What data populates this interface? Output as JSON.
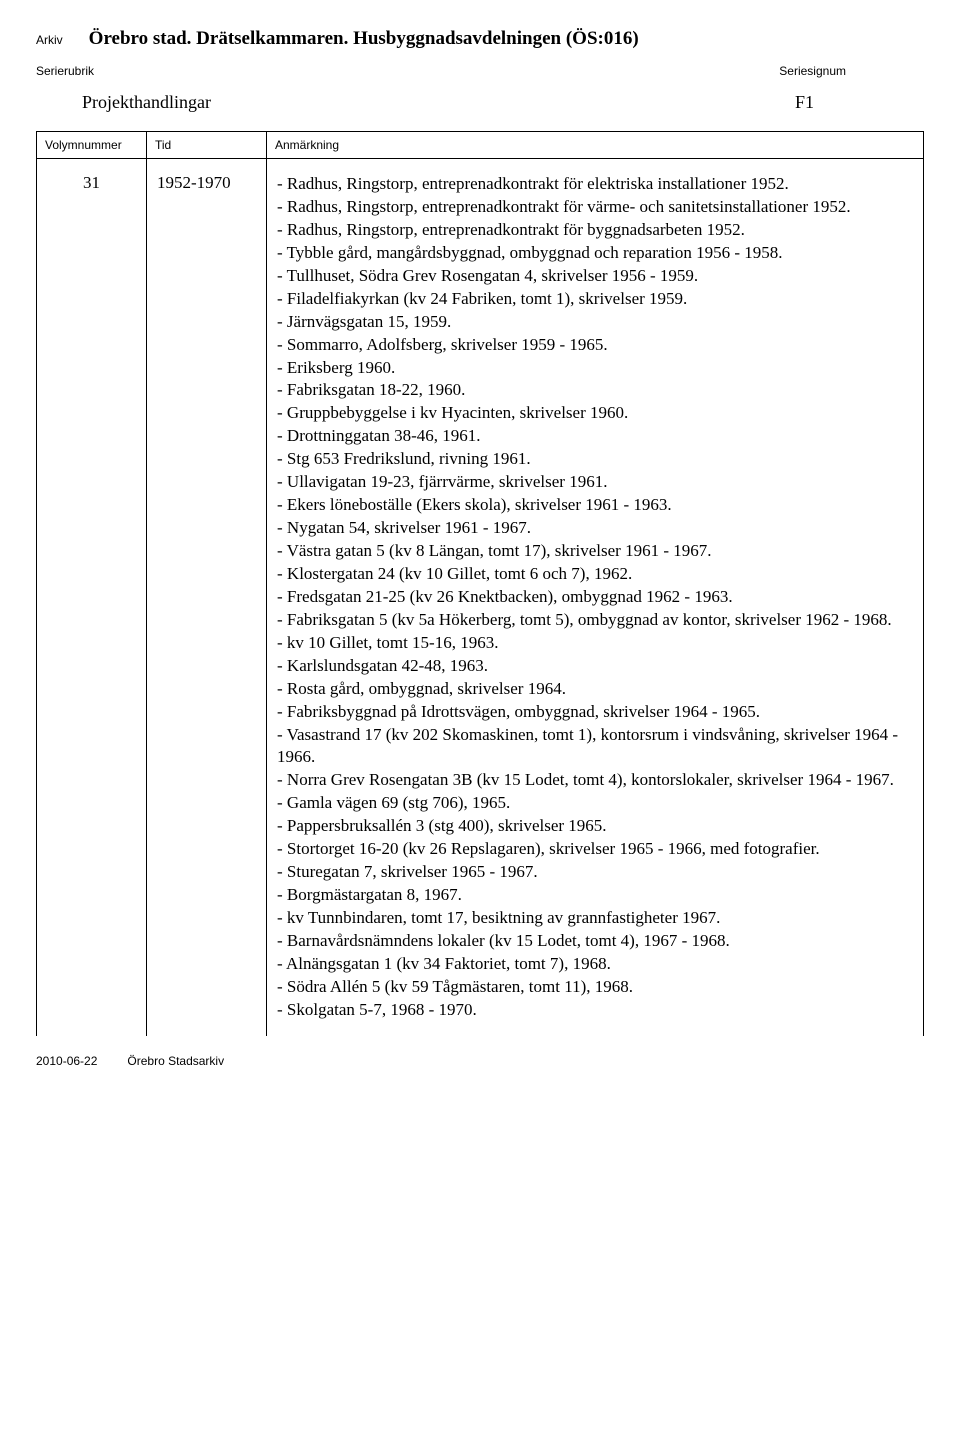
{
  "labels": {
    "arkiv": "Arkiv",
    "serierubrik": "Serierubrik",
    "seriesignum": "Seriesignum",
    "volymnummer": "Volymnummer",
    "tid": "Tid",
    "anmarkning": "Anmärkning"
  },
  "archive_title": "Örebro stad. Drätselkammaren. Husbyggnadsavdelningen (ÖS:016)",
  "series_name": "Projekthandlingar",
  "series_signum": "F1",
  "row": {
    "volym": "31",
    "tid": "1952-1970",
    "notes": [
      "- Radhus, Ringstorp, entreprenadkontrakt för elektriska installationer 1952.",
      "- Radhus, Ringstorp, entreprenadkontrakt för värme- och sanitetsinstallationer 1952.",
      "- Radhus, Ringstorp, entreprenadkontrakt för byggnadsarbeten 1952.",
      "- Tybble gård, mangårdsbyggnad, ombyggnad och reparation 1956 - 1958.",
      "- Tullhuset, Södra Grev Rosengatan 4, skrivelser 1956 - 1959.",
      "- Filadelfiakyrkan (kv 24 Fabriken, tomt 1), skrivelser 1959.",
      "- Järnvägsgatan 15, 1959.",
      "- Sommarro, Adolfsberg, skrivelser 1959 - 1965.",
      "- Eriksberg 1960.",
      "- Fabriksgatan 18-22, 1960.",
      "- Gruppbebyggelse i kv Hyacinten, skrivelser 1960.",
      "- Drottninggatan 38-46, 1961.",
      "- Stg 653 Fredrikslund, rivning 1961.",
      "- Ullavigatan 19-23, fjärrvärme, skrivelser 1961.",
      "- Ekers löneboställe (Ekers skola), skrivelser 1961 - 1963.",
      "- Nygatan 54, skrivelser 1961 - 1967.",
      "- Västra gatan 5 (kv 8 Längan, tomt 17), skrivelser 1961 - 1967.",
      "- Klostergatan 24 (kv 10 Gillet, tomt 6 och 7), 1962.",
      "- Fredsgatan 21-25 (kv 26 Knektbacken), ombyggnad 1962 - 1963.",
      "- Fabriksgatan 5 (kv 5a Hökerberg, tomt 5), ombyggnad av kontor, skrivelser 1962 - 1968.",
      "- kv 10 Gillet, tomt 15-16, 1963.",
      "- Karlslundsgatan 42-48, 1963.",
      "- Rosta gård, ombyggnad, skrivelser 1964.",
      "- Fabriksbyggnad på Idrottsvägen, ombyggnad, skrivelser 1964 - 1965.",
      "- Vasastrand 17 (kv 202 Skomaskinen, tomt 1), kontorsrum i vindsvåning, skrivelser 1964 - 1966.",
      "- Norra Grev Rosengatan 3B (kv 15 Lodet, tomt 4), kontorslokaler, skrivelser 1964 - 1967.",
      "- Gamla vägen 69 (stg 706), 1965.",
      "- Pappersbruksallén 3 (stg 400), skrivelser 1965.",
      "- Stortorget 16-20 (kv 26 Repslagaren), skrivelser 1965 - 1966, med fotografier.",
      "- Sturegatan 7, skrivelser 1965 - 1967.",
      "- Borgmästargatan 8, 1967.",
      "- kv Tunnbindaren, tomt 17, besiktning av grannfastigheter 1967.",
      "- Barnavårdsnämndens lokaler (kv 15 Lodet, tomt 4), 1967 - 1968.",
      "- Alnängsgatan 1 (kv 34 Faktoriet, tomt 7), 1968.",
      "- Södra Allén 5 (kv 59 Tågmästaren, tomt 11), 1968.",
      "- Skolgatan 5-7, 1968 - 1970."
    ]
  },
  "footer": {
    "date": "2010-06-22",
    "source": "Örebro Stadsarkiv"
  }
}
